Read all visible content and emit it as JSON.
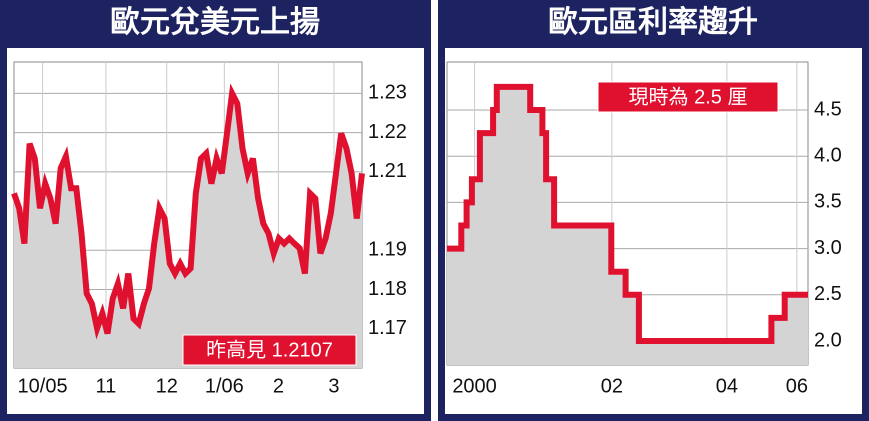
{
  "chart_data": [
    {
      "type": "line",
      "title": "歐元兌美元上揚",
      "annotation": "昨高見 1.2107",
      "x": [
        0,
        1,
        2,
        3,
        4,
        5,
        6,
        7,
        8,
        9,
        10,
        11,
        12,
        13,
        14,
        15,
        16,
        17,
        18,
        19,
        20,
        21,
        22,
        23,
        24,
        25,
        26,
        27,
        28,
        29,
        30,
        31,
        32,
        33,
        34,
        35,
        36,
        37,
        38,
        39,
        40,
        41,
        42,
        43,
        44,
        45,
        46,
        47,
        48,
        49,
        50,
        51,
        52,
        53,
        54,
        55,
        56,
        57,
        58,
        59,
        60,
        61,
        62,
        63,
        64,
        65,
        66,
        67
      ],
      "values": [
        1.2045,
        1.2007,
        1.1917,
        1.2172,
        1.2134,
        1.2007,
        1.207,
        1.2032,
        1.1968,
        1.2109,
        1.2139,
        1.2058,
        1.2058,
        1.1943,
        1.179,
        1.1764,
        1.1701,
        1.1739,
        1.1688,
        1.1777,
        1.1815,
        1.1752,
        1.1841,
        1.1726,
        1.1713,
        1.1764,
        1.1803,
        1.1917,
        1.2007,
        1.1981,
        1.1866,
        1.1841,
        1.1866,
        1.1841,
        1.1854,
        1.2045,
        1.2134,
        1.2147,
        1.207,
        1.2134,
        1.2096,
        1.2198,
        1.23,
        1.2274,
        1.216,
        1.2096,
        1.2134,
        1.2032,
        1.1968,
        1.1943,
        1.1892,
        1.193,
        1.1917,
        1.193,
        1.1917,
        1.1905,
        1.1841,
        1.2045,
        1.2032,
        1.1892,
        1.193,
        1.1994,
        1.2096,
        1.2198,
        1.216,
        1.2096,
        1.1981,
        1.2096
      ],
      "color": "#e0102f",
      "fill": "#d4d4d4",
      "step": false,
      "xlim": [
        0,
        67
      ],
      "xticks": [
        {
          "value": 5.5,
          "label": "10/05"
        },
        {
          "value": 17.7,
          "label": "11"
        },
        {
          "value": 29.4,
          "label": "12"
        },
        {
          "value": 40.5,
          "label": "1/06"
        },
        {
          "value": 50.9,
          "label": "2"
        },
        {
          "value": 61.6,
          "label": "3"
        }
      ],
      "ylim": [
        1.16,
        1.238
      ],
      "yticks": [
        1.17,
        1.18,
        1.19,
        1.21,
        1.22,
        1.23
      ],
      "grid": true
    },
    {
      "type": "line",
      "title": "歐元區利率趨升",
      "annotation": "現時為 2.5 厘",
      "x": [
        1999.83,
        2000.1,
        2000.2,
        2000.3,
        2000.45,
        2000.7,
        2000.77,
        2001.4,
        2001.63,
        2001.7,
        2001.85,
        2002.93,
        2003.2,
        2003.45,
        2005.95,
        2006.2
      ],
      "values": [
        3.0,
        3.25,
        3.5,
        3.75,
        4.25,
        4.5,
        4.75,
        4.5,
        4.25,
        3.75,
        3.25,
        2.75,
        2.5,
        2.0,
        2.25,
        2.5
      ],
      "color": "#e0102f",
      "fill": "#d4d4d4",
      "step": true,
      "xlim": [
        1999.83,
        2006.64
      ],
      "xticks": [
        {
          "value": 2000.35,
          "label": "2000"
        },
        {
          "value": 2002.94,
          "label": "02"
        },
        {
          "value": 2005.11,
          "label": "04"
        },
        {
          "value": 2006.43,
          "label": "06"
        }
      ],
      "ylim": [
        1.74,
        5.02
      ],
      "yticks": [
        {
          "value": 2.0,
          "label": "2.0"
        },
        {
          "value": 2.5,
          "label": "2.5"
        },
        {
          "value": 3.0,
          "label": "3.0"
        },
        {
          "value": 3.5,
          "label": "3.5"
        },
        {
          "value": 4.0,
          "label": "4.0"
        },
        {
          "value": 4.5,
          "label": "4.5"
        }
      ],
      "grid": true
    }
  ]
}
